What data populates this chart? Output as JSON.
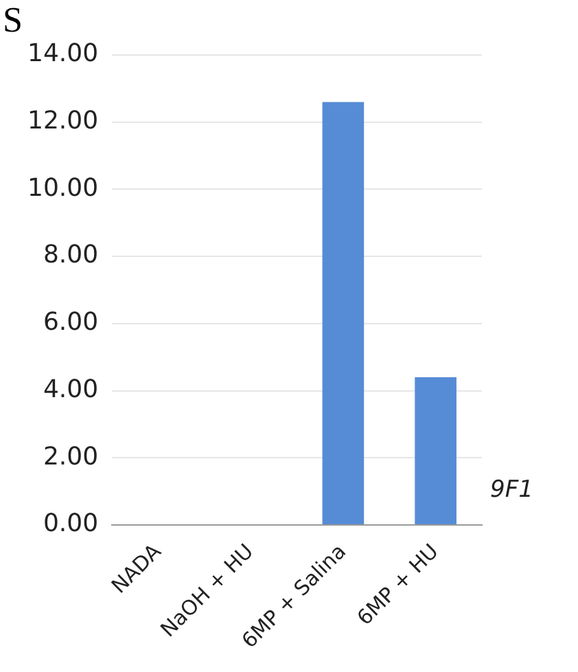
{
  "chart_data": {
    "type": "bar",
    "title": "S",
    "categories": [
      "NADA",
      "NaOH + HU",
      "6MP + Salina",
      "6MP + HU"
    ],
    "series": [
      {
        "name": "9F1",
        "color": "#568cd6",
        "values": [
          0,
          0,
          12.6,
          4.4
        ]
      }
    ],
    "ylim": [
      0,
      14
    ],
    "yticks": [
      {
        "value": 0,
        "label": "0.00"
      },
      {
        "value": 2,
        "label": "2.00"
      },
      {
        "value": 4,
        "label": "4.00"
      },
      {
        "value": 6,
        "label": "6.00"
      },
      {
        "value": 8,
        "label": "8.00"
      },
      {
        "value": 10,
        "label": "10.00"
      },
      {
        "value": 12,
        "label": "12.00"
      },
      {
        "value": 14,
        "label": "14.00"
      }
    ],
    "grid": "y",
    "legend": false
  }
}
